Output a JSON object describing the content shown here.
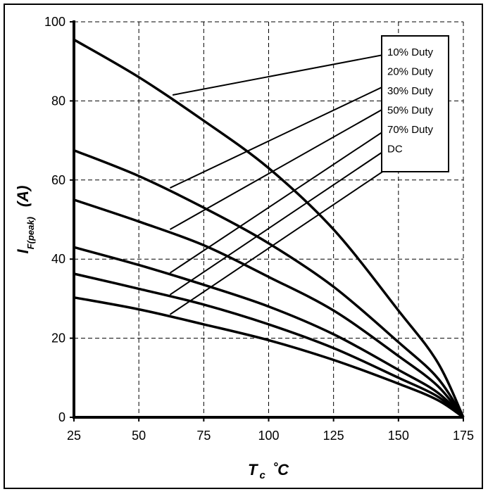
{
  "chart_data": {
    "type": "line",
    "title": "",
    "xlabel": {
      "main": "T",
      "sub": "c",
      "unit": "˚C"
    },
    "ylabel": {
      "main": "I",
      "sub": "F(peak)",
      "unit": "(A)"
    },
    "xlim": [
      25,
      175
    ],
    "ylim": [
      0,
      100
    ],
    "x_ticks": [
      25,
      50,
      75,
      100,
      125,
      150,
      175
    ],
    "y_ticks": [
      0,
      20,
      40,
      60,
      80,
      100
    ],
    "grid": true,
    "legend_position": "top-right",
    "series": [
      {
        "name": "10% Duty",
        "x": [
          25,
          50,
          75,
          100,
          125,
          150,
          165,
          175
        ],
        "y": [
          95.5,
          86,
          75,
          63,
          47.5,
          27,
          14,
          0
        ]
      },
      {
        "name": "20% Duty",
        "x": [
          25,
          50,
          75,
          100,
          125,
          150,
          165,
          175
        ],
        "y": [
          67.5,
          61,
          53,
          44,
          33,
          19,
          10,
          0
        ]
      },
      {
        "name": "30% Duty",
        "x": [
          25,
          50,
          75,
          100,
          125,
          150,
          165,
          175
        ],
        "y": [
          55,
          49.5,
          43.5,
          35.5,
          27,
          15.5,
          8,
          0
        ]
      },
      {
        "name": "50% Duty",
        "x": [
          25,
          50,
          75,
          100,
          125,
          150,
          165,
          175
        ],
        "y": [
          43,
          38.5,
          33.5,
          28,
          21,
          12,
          6.3,
          0
        ]
      },
      {
        "name": "70% Duty",
        "x": [
          25,
          50,
          75,
          100,
          125,
          150,
          165,
          175
        ],
        "y": [
          36.3,
          32.5,
          28.5,
          23.5,
          17.5,
          10,
          5.3,
          0
        ]
      },
      {
        "name": "DC",
        "x": [
          25,
          50,
          75,
          100,
          125,
          150,
          165,
          175
        ],
        "y": [
          30.3,
          27.3,
          23.5,
          19.5,
          14.5,
          8.5,
          4.4,
          0
        ]
      }
    ],
    "legend_leaders": [
      {
        "series": "10% Duty",
        "from": [
          63,
          81.5
        ],
        "to": [
          155,
          93
        ]
      },
      {
        "series": "20% Duty",
        "from": [
          62,
          58
        ],
        "to": [
          155,
          87
        ]
      },
      {
        "series": "30% Duty",
        "from": [
          62,
          47.5
        ],
        "to": [
          155,
          82
        ]
      },
      {
        "series": "50% Duty",
        "from": [
          62,
          36.5
        ],
        "to": [
          155,
          77
        ]
      },
      {
        "series": "70% Duty",
        "from": [
          62,
          31
        ],
        "to": [
          155,
          72
        ]
      },
      {
        "series": "DC",
        "from": [
          62,
          26
        ],
        "to": [
          155,
          67
        ]
      }
    ]
  }
}
